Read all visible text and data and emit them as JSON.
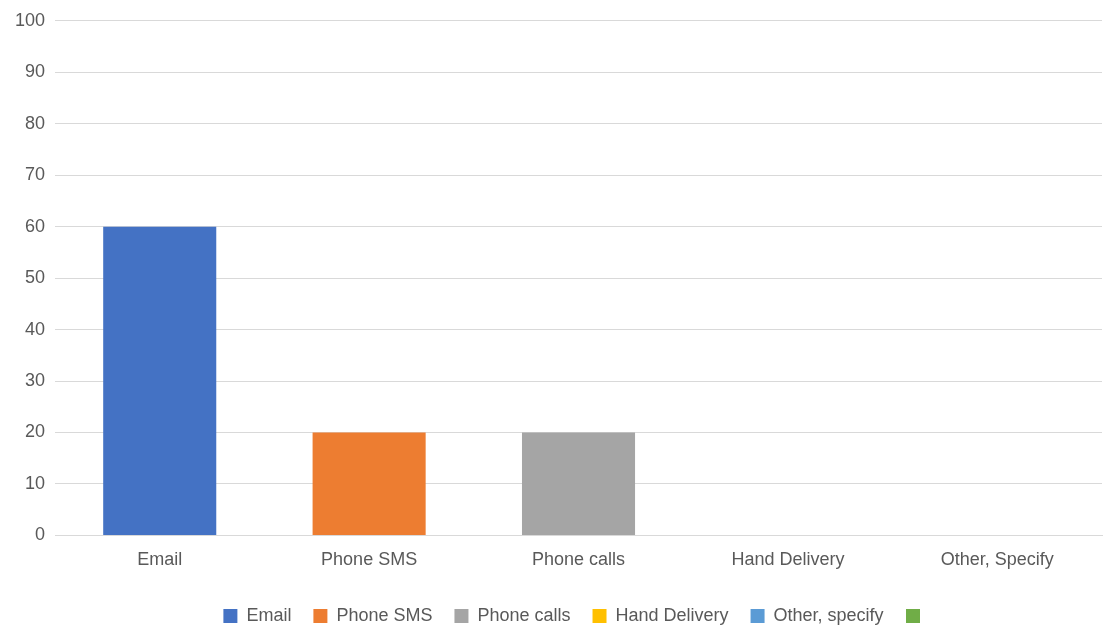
{
  "chart_data": {
    "type": "bar",
    "categories": [
      "Email",
      "Phone SMS",
      "Phone calls",
      "Hand Delivery",
      "Other, Specify"
    ],
    "series": [
      {
        "name": "Email",
        "color": "#4472c4",
        "values": [
          60,
          null,
          null,
          null,
          null
        ]
      },
      {
        "name": "Phone SMS",
        "color": "#ed7d31",
        "values": [
          null,
          20,
          null,
          null,
          null
        ]
      },
      {
        "name": "Phone calls",
        "color": "#a5a5a5",
        "values": [
          null,
          null,
          20,
          null,
          null
        ]
      },
      {
        "name": "Hand Delivery",
        "color": "#ffc000",
        "values": [
          null,
          null,
          null,
          0,
          null
        ]
      },
      {
        "name": "Other, specify",
        "color": "#5b9bd5",
        "values": [
          null,
          null,
          null,
          null,
          0
        ]
      },
      {
        "color": "#70ad47",
        "values": [
          null,
          null,
          null,
          null,
          null
        ]
      }
    ],
    "ylim": [
      0,
      100
    ],
    "yticks": [
      0,
      10,
      20,
      30,
      40,
      50,
      60,
      70,
      80,
      90,
      100
    ],
    "grid": "y",
    "legend": "bottom"
  }
}
